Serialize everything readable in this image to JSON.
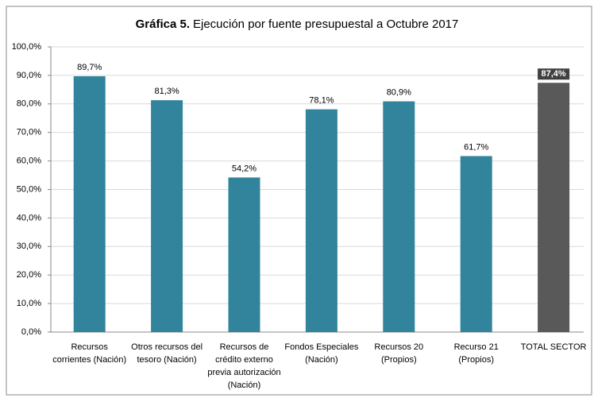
{
  "chart_data": {
    "type": "bar",
    "title_number": "Gráfica 5.",
    "title": "Ejecución por fuente presupuestal a Octubre 2017",
    "categories": [
      [
        "Recursos",
        "corrientes (Nación)"
      ],
      [
        "Otros recursos del",
        "tesoro (Nación)"
      ],
      [
        "Recursos de",
        "crédito externo",
        "previa autorización",
        "(Nación)"
      ],
      [
        "Fondos Especiales",
        "(Nación)"
      ],
      [
        "Recursos 20",
        "(Propios)"
      ],
      [
        "Recurso 21",
        "(Propios)"
      ],
      [
        "TOTAL SECTOR"
      ]
    ],
    "values": [
      89.7,
      81.3,
      54.2,
      78.1,
      80.9,
      61.7,
      87.4
    ],
    "value_labels": [
      "89,7%",
      "81,3%",
      "54,2%",
      "78,1%",
      "80,9%",
      "61,7%",
      "87,4%"
    ],
    "colors": [
      "#31849b",
      "#31849b",
      "#31849b",
      "#31849b",
      "#31849b",
      "#31849b",
      "#595959"
    ],
    "ylim": [
      0,
      100
    ],
    "yticks": [
      {
        "value": 0,
        "label": "0,0%"
      },
      {
        "value": 10,
        "label": "10,0%"
      },
      {
        "value": 20,
        "label": "20,0%"
      },
      {
        "value": 30,
        "label": "30,0%"
      },
      {
        "value": 40,
        "label": "40,0%"
      },
      {
        "value": 50,
        "label": "50,0%"
      },
      {
        "value": 60,
        "label": "60,0%"
      },
      {
        "value": 70,
        "label": "70,0%"
      },
      {
        "value": 80,
        "label": "80,0%"
      },
      {
        "value": 90,
        "label": "90,0%"
      },
      {
        "value": 100,
        "label": "100,0%"
      }
    ],
    "grid": true
  }
}
